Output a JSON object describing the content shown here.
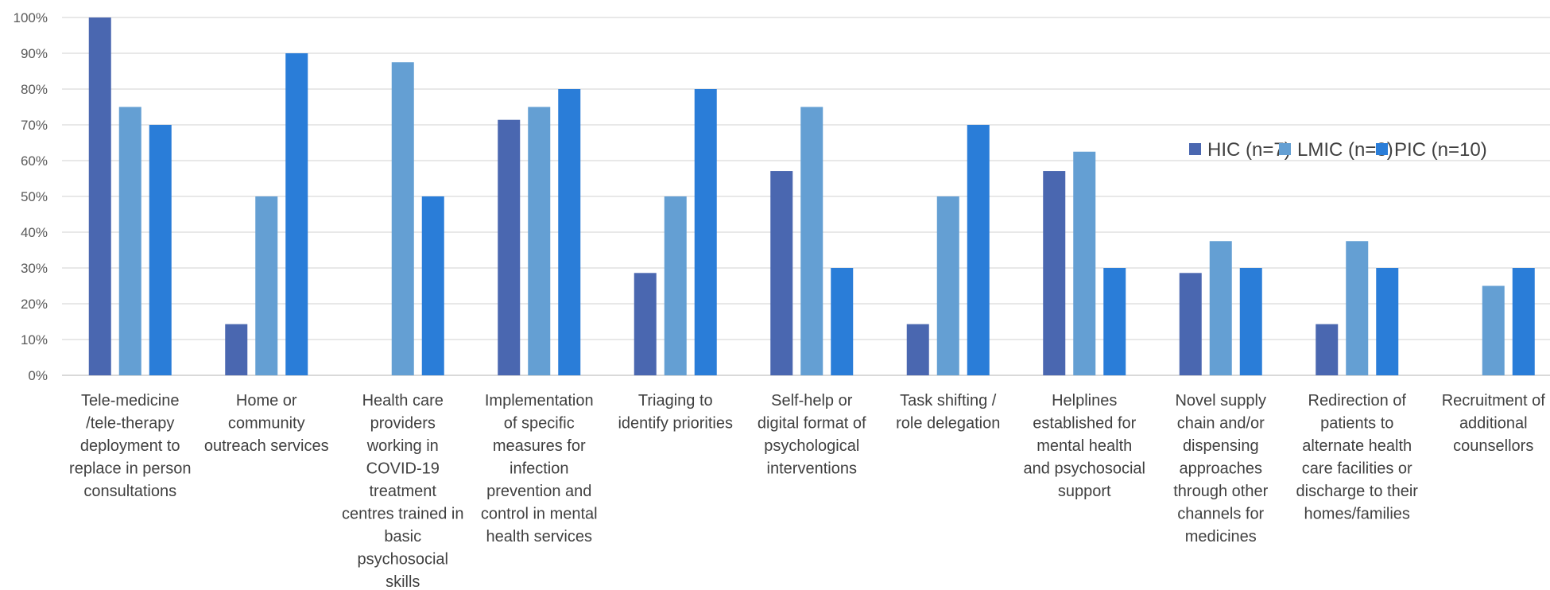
{
  "chart_data": {
    "type": "bar",
    "title": "",
    "xlabel": "",
    "ylabel": "",
    "ylim": [
      0,
      100
    ],
    "y_ticks": [
      0,
      10,
      20,
      30,
      40,
      50,
      60,
      70,
      80,
      90,
      100
    ],
    "y_tick_suffix": "%",
    "grid": true,
    "legend_position": "right",
    "categories": [
      [
        "Tele-medicine",
        "/tele-therapy",
        "deployment to",
        "replace in person",
        "consultations"
      ],
      [
        "Home or",
        "community",
        "outreach services"
      ],
      [
        "Health care",
        "providers",
        "working in",
        "COVID-19",
        "treatment",
        "centres trained in",
        "basic",
        "psychosocial",
        "skills"
      ],
      [
        "Implementation",
        "of specific",
        "measures for",
        "infection",
        "prevention and",
        "control in mental",
        "health services"
      ],
      [
        "Triaging to",
        "identify priorities"
      ],
      [
        "Self-help or",
        "digital format of",
        "psychological",
        "interventions"
      ],
      [
        "Task shifting /",
        "role delegation"
      ],
      [
        "Helplines",
        "established for",
        "mental health",
        "and psychosocial",
        "support"
      ],
      [
        "Novel supply",
        "chain and/or",
        "dispensing",
        "approaches",
        "through other",
        "channels for",
        "medicines"
      ],
      [
        "Redirection of",
        "patients to",
        "alternate health",
        "care facilities or",
        "discharge to their",
        "homes/families"
      ],
      [
        "Recruitment of",
        "additional",
        "counsellors"
      ]
    ],
    "series": [
      {
        "name": "HIC (n=7)",
        "color": "#4a67b0",
        "values": [
          100,
          14.3,
          0,
          71.4,
          28.6,
          57.1,
          14.3,
          57.1,
          28.6,
          14.3,
          0
        ]
      },
      {
        "name": "LMIC (n=8)",
        "color": "#649fd3",
        "values": [
          75,
          50,
          87.5,
          75,
          50,
          75,
          50,
          62.5,
          37.5,
          37.5,
          25
        ]
      },
      {
        "name": "PIC (n=10)",
        "color": "#2a7dd8",
        "values": [
          70,
          90,
          50,
          80,
          80,
          30,
          70,
          30,
          30,
          30,
          30
        ]
      }
    ]
  }
}
